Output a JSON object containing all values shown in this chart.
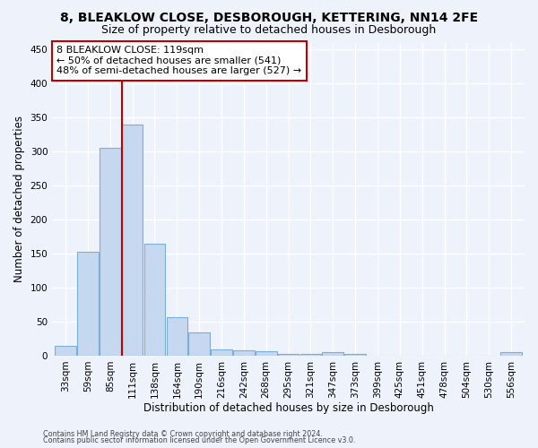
{
  "title_line1": "8, BLEAKLOW CLOSE, DESBOROUGH, KETTERING, NN14 2FE",
  "title_line2": "Size of property relative to detached houses in Desborough",
  "xlabel": "Distribution of detached houses by size in Desborough",
  "ylabel": "Number of detached properties",
  "footer_line1": "Contains HM Land Registry data © Crown copyright and database right 2024.",
  "footer_line2": "Contains public sector information licensed under the Open Government Licence v3.0.",
  "bar_labels": [
    "33sqm",
    "59sqm",
    "85sqm",
    "111sqm",
    "138sqm",
    "164sqm",
    "190sqm",
    "216sqm",
    "242sqm",
    "268sqm",
    "295sqm",
    "321sqm",
    "347sqm",
    "373sqm",
    "399sqm",
    "425sqm",
    "451sqm",
    "478sqm",
    "504sqm",
    "530sqm",
    "556sqm"
  ],
  "bar_values": [
    15,
    153,
    305,
    340,
    165,
    57,
    34,
    9,
    8,
    6,
    3,
    2,
    5,
    3,
    0,
    0,
    0,
    0,
    0,
    0,
    5
  ],
  "bar_color": "#c5d8ef",
  "bar_edge_color": "#7bafd4",
  "highlight_bar_index": 3,
  "vline_color": "#c00000",
  "annotation_text": "8 BLEAKLOW CLOSE: 119sqm\n← 50% of detached houses are smaller (541)\n48% of semi-detached houses are larger (527) →",
  "annotation_box_color": "#ffffff",
  "annotation_box_edge_color": "#c00000",
  "ylim": [
    0,
    460
  ],
  "yticks": [
    0,
    50,
    100,
    150,
    200,
    250,
    300,
    350,
    400,
    450
  ],
  "background_color": "#eef2fa",
  "plot_background_color": "#eef2fa",
  "grid_color": "#ffffff",
  "title_fontsize": 10,
  "subtitle_fontsize": 9,
  "axis_label_fontsize": 8.5,
  "tick_fontsize": 7.5,
  "annotation_fontsize": 8
}
